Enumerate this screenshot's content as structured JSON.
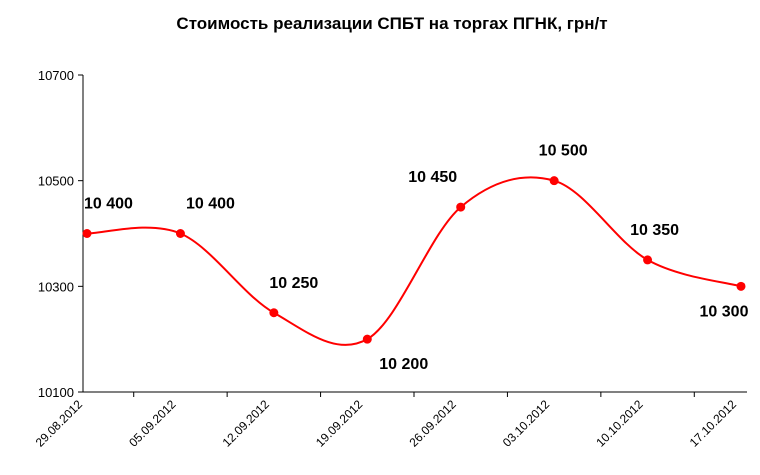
{
  "chart_data": {
    "type": "line",
    "title": "Стоимость реализации СПБТ на торгах ПГНК, грн/т",
    "xlabel": "",
    "ylabel": "",
    "categories": [
      "29.08.2012",
      "05.09.2012",
      "12.09.2012",
      "19.09.2012",
      "26.09.2012",
      "03.10.2012",
      "10.10.2012",
      "17.10.2012"
    ],
    "values": [
      10400,
      10400,
      10250,
      10200,
      10450,
      10500,
      10350,
      10300
    ],
    "data_labels": [
      "10 400",
      "10 400",
      "10 250",
      "10 200",
      "10 450",
      "10 500",
      "10 350",
      "10 300"
    ],
    "yticks": [
      "10100",
      "10300",
      "10500",
      "10700"
    ],
    "ylim": [
      10100,
      10700
    ],
    "grid": false,
    "legend": "none",
    "smooth": true,
    "colors": {
      "line": "#ff0000",
      "marker": "#ff0000",
      "axis": "#000000"
    }
  }
}
